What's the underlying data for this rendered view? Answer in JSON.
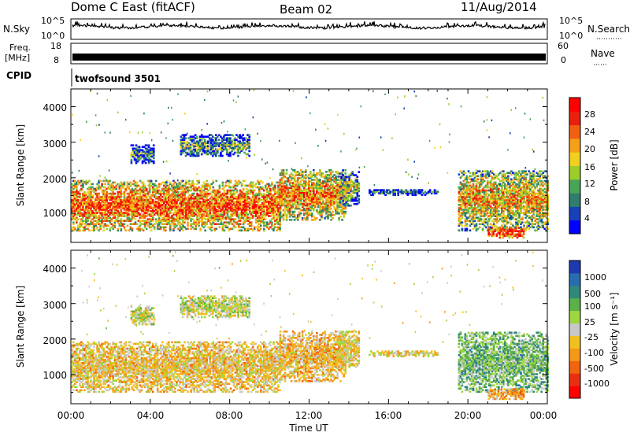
{
  "header": {
    "radar": "Dome C East (fitACF)",
    "beam": "Beam 02",
    "date": "11/Aug/2014"
  },
  "noise_panel": {
    "left_label": "N.Sky",
    "right_label": "N.Search",
    "left_ticks": [
      "10^5",
      "10^0"
    ],
    "right_ticks": [
      "10^5",
      "10^0"
    ]
  },
  "freq_panel": {
    "left_label_line1": "Freq.",
    "left_label_line2": "[MHz]",
    "left_ticks": [
      "18",
      "8"
    ],
    "right_label": "Nave",
    "right_ticks": [
      "60",
      "0"
    ]
  },
  "cpid": {
    "label": "CPID",
    "value": "twofsound 3501"
  },
  "x_axis": {
    "label": "Time UT",
    "ticks": [
      "00:00",
      "04:00",
      "08:00",
      "12:00",
      "16:00",
      "20:00",
      "00:00"
    ],
    "range_hours": [
      0,
      24
    ]
  },
  "power_panel": {
    "ylabel": "Slant Range [km]",
    "yticks": [
      "1000",
      "2000",
      "3000",
      "4000"
    ],
    "colorbar_label": "Power [dB]",
    "colorbar_ticks": [
      "4",
      "8",
      "12",
      "16",
      "20",
      "24",
      "28"
    ],
    "colors": [
      "#0000ff",
      "#1840b8",
      "#2f7d6a",
      "#48a558",
      "#9ccd2a",
      "#f0d020",
      "#f5a018",
      "#f06010",
      "#e8200c",
      "#ff0000"
    ]
  },
  "velocity_panel": {
    "ylabel": "Slant Range [km]",
    "yticks": [
      "1000",
      "2000",
      "3000",
      "4000"
    ],
    "colorbar_label": "Velocity [m s⁻¹]",
    "colorbar_ticks": [
      "1000",
      "500",
      "100",
      "25",
      "-25",
      "-100",
      "-500",
      "-1000"
    ],
    "colors": [
      "#1f3ab0",
      "#2a6cb0",
      "#2f8a7a",
      "#5bb048",
      "#9ed640",
      "#c8c8c8",
      "#f0c020",
      "#f59818",
      "#f06410",
      "#e83010",
      "#ff0000"
    ]
  },
  "chart_data": {
    "type": "heatmap",
    "x_unit": "hours UT",
    "y_unit": "slant range km",
    "xlim": [
      0,
      24
    ],
    "ylim": [
      180,
      4500
    ],
    "noise_trace": "continuous",
    "frequency_mhz": 10,
    "scatter_regions": [
      {
        "t": [
          0.0,
          10.5
        ],
        "r": [
          500,
          1900
        ],
        "power_db": 24,
        "velocity": -150
      },
      {
        "t": [
          3.0,
          4.2
        ],
        "r": [
          2400,
          2900
        ],
        "power_db": 10,
        "velocity": 40
      },
      {
        "t": [
          5.5,
          9.0
        ],
        "r": [
          2600,
          3200
        ],
        "power_db": 12,
        "velocity": 60
      },
      {
        "t": [
          10.5,
          13.8
        ],
        "r": [
          800,
          2200
        ],
        "power_db": 22,
        "velocity": -200
      },
      {
        "t": [
          13.5,
          14.5
        ],
        "r": [
          1200,
          2200
        ],
        "power_db": 14,
        "velocity": -100
      },
      {
        "t": [
          15.0,
          18.5
        ],
        "r": [
          1500,
          1650
        ],
        "power_db": 8,
        "velocity": -80
      },
      {
        "t": [
          19.5,
          24.0
        ],
        "r": [
          500,
          2200
        ],
        "power_db": 20,
        "velocity": 300
      },
      {
        "t": [
          21.0,
          22.8
        ],
        "r": [
          300,
          600
        ],
        "power_db": 28,
        "velocity": -300
      }
    ]
  }
}
